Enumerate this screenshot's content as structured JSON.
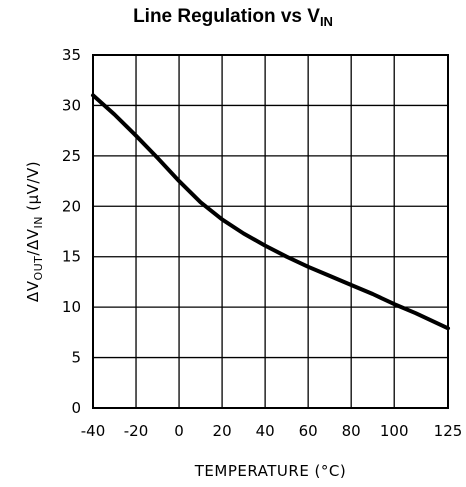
{
  "title": {
    "main": "Line Regulation vs V",
    "sub": "IN"
  },
  "chart_data": {
    "type": "line",
    "title": "Line Regulation vs VIN",
    "xlabel": "TEMPERATURE (°C)",
    "ylabel": {
      "prefix": "ΔV",
      "sub1": "OUT",
      "mid": "/ΔV",
      "sub2": "IN",
      "suffix": " (μV/V)"
    },
    "xlim": [
      -40,
      125
    ],
    "ylim": [
      0,
      35
    ],
    "x_ticks": [
      -40,
      -20,
      0,
      20,
      40,
      60,
      80,
      100,
      125
    ],
    "y_ticks": [
      0,
      5,
      10,
      15,
      20,
      25,
      30,
      35
    ],
    "grid": true,
    "series": [
      {
        "x": [
          -40,
          -30,
          -20,
          -10,
          0,
          10,
          20,
          30,
          40,
          50,
          60,
          70,
          80,
          90,
          100,
          110,
          125
        ],
        "y": [
          31,
          29.1,
          27,
          24.8,
          22.5,
          20.4,
          18.7,
          17.3,
          16.1,
          15.0,
          14.0,
          13.1,
          12.2,
          11.3,
          10.3,
          9.4,
          7.9
        ]
      }
    ]
  }
}
